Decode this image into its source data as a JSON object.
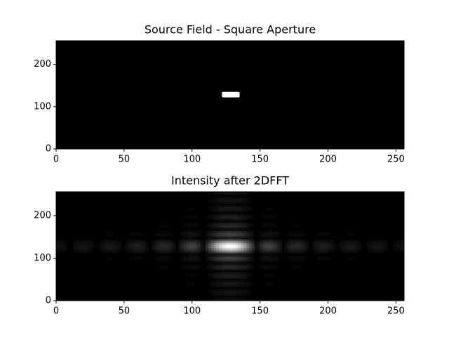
{
  "chart_data": [
    {
      "type": "aperture",
      "title": "Source Field - Square Aperture",
      "xlim": [
        0,
        256
      ],
      "ylim": [
        0,
        256
      ],
      "xticks": [
        0,
        50,
        100,
        150,
        200,
        250
      ],
      "yticks": [
        0,
        100,
        200
      ],
      "aperture": {
        "x": [
          122,
          135
        ],
        "y": [
          122,
          135
        ]
      },
      "colormap": "gray"
    },
    {
      "type": "intensity",
      "title": "Intensity after 2DFFT",
      "xlim": [
        0,
        256
      ],
      "ylim": [
        0,
        256
      ],
      "xticks": [
        0,
        50,
        100,
        150,
        200,
        250
      ],
      "yticks": [
        0,
        100,
        200
      ],
      "center": [
        128,
        128
      ],
      "colormap": "gray"
    }
  ]
}
